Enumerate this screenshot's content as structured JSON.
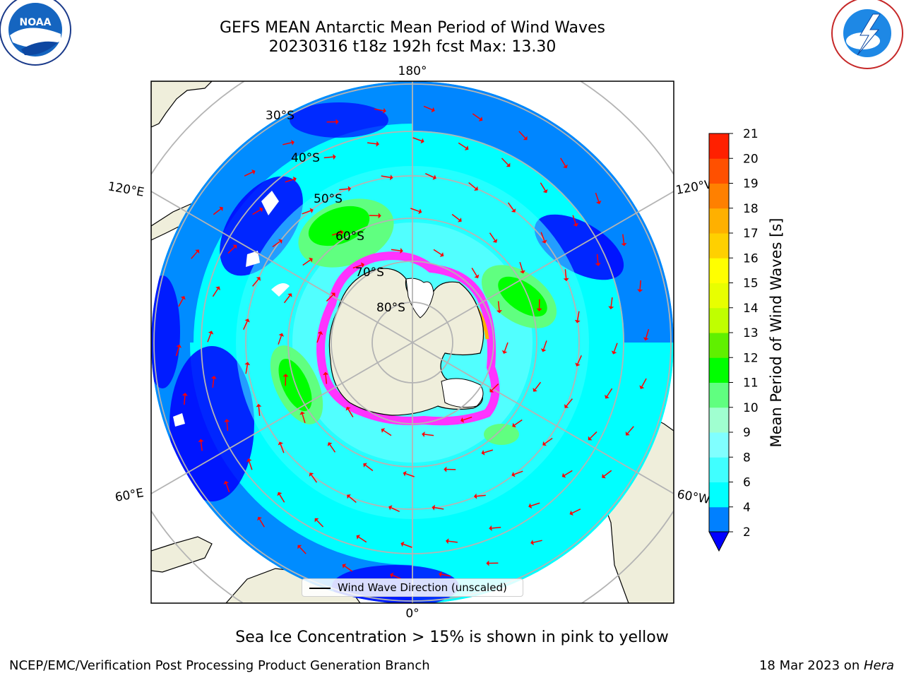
{
  "header": {
    "title_line1": "GEFS MEAN Antarctic Mean Period of Wind Waves",
    "title_line2": "20230316 t18z 192h fcst   Max: 13.30"
  },
  "logos": {
    "left": "noaa-logo",
    "right": "nws-logo"
  },
  "map": {
    "projection": "south-polar-stereographic",
    "longitude_labels": {
      "top": "180°",
      "bottom": "0°",
      "left_upper": "120°E",
      "left_lower": "60°E",
      "right_upper": "120°W",
      "right_lower": "60°W"
    },
    "latitude_labels": [
      "30°S",
      "40°S",
      "50°S",
      "60°S",
      "70°S",
      "80°S"
    ],
    "legend_label": "Wind Wave Direction (unscaled)",
    "colors": {
      "land": "#efeedb",
      "ocean_low": "#0000ff",
      "sea_ice_pink": "#ff33ff",
      "arrows": "#ff0000",
      "grid": "#b4b4b4"
    }
  },
  "colorbar": {
    "label": "Mean Period of Wind Waves [s]",
    "ticks": [
      "2",
      "4",
      "6",
      "8",
      "9",
      "10",
      "11",
      "12",
      "13",
      "14",
      "15",
      "16",
      "17",
      "18",
      "19",
      "20",
      "21"
    ],
    "colors": [
      "#0000ff",
      "#0080ff",
      "#00ffff",
      "#40ffff",
      "#80ffff",
      "#a0ffd0",
      "#60ff80",
      "#00ff00",
      "#60f000",
      "#c0ff00",
      "#e8ff00",
      "#ffff00",
      "#ffd000",
      "#ffb000",
      "#ff8000",
      "#ff5000",
      "#ff2000",
      "#ff0000"
    ],
    "extend": "min"
  },
  "caption": "Sea Ice Concentration > 15% is shown in pink to yellow",
  "footer": {
    "left": "NCEP/EMC/Verification Post Processing Product Generation Branch",
    "right_date": "18 Mar 2023 on ",
    "right_host": "Hera"
  }
}
